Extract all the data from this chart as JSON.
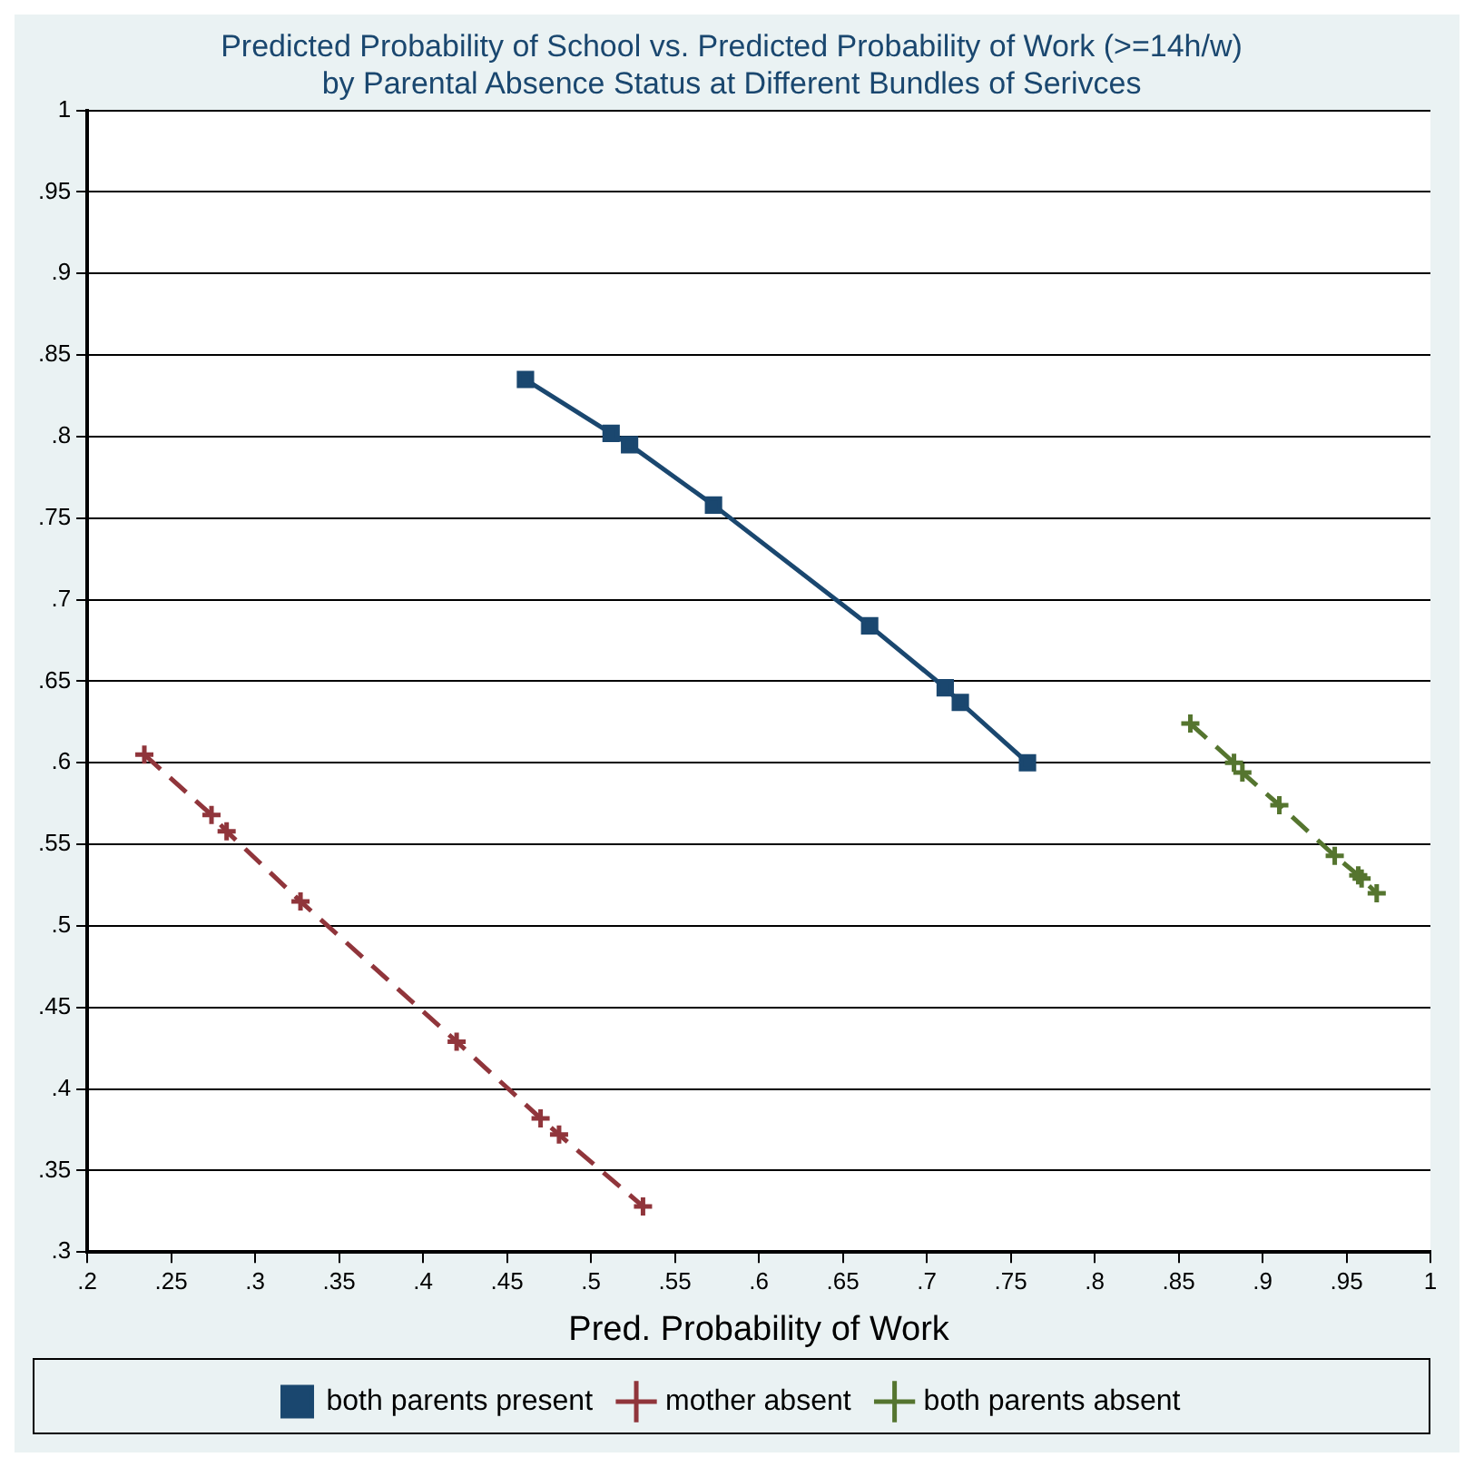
{
  "chart_data": {
    "type": "line",
    "title": "Predicted Probability of School vs. Predicted Probability of Work (>=14h/w)",
    "subtitle": "by Parental Absence Status at Different Bundles of Serivces",
    "xlabel": "Pred. Probability of Work",
    "xlim": [
      0.2,
      1
    ],
    "xticks": [
      {
        "value": 0.2,
        "label": ".2"
      },
      {
        "value": 0.25,
        "label": ".25"
      },
      {
        "value": 0.3,
        "label": ".3"
      },
      {
        "value": 0.35,
        "label": ".35"
      },
      {
        "value": 0.4,
        "label": ".4"
      },
      {
        "value": 0.45,
        "label": ".45"
      },
      {
        "value": 0.5,
        "label": ".5"
      },
      {
        "value": 0.55,
        "label": ".55"
      },
      {
        "value": 0.6,
        "label": ".6"
      },
      {
        "value": 0.65,
        "label": ".65"
      },
      {
        "value": 0.7,
        "label": ".7"
      },
      {
        "value": 0.75,
        "label": ".75"
      },
      {
        "value": 0.8,
        "label": ".8"
      },
      {
        "value": 0.85,
        "label": ".85"
      },
      {
        "value": 0.9,
        "label": ".9"
      },
      {
        "value": 0.95,
        "label": ".95"
      },
      1
    ],
    "ylim": [
      0.3,
      1
    ],
    "yticks": [
      {
        "value": 0.3,
        "label": ".3"
      },
      {
        "value": 0.35,
        "label": ".35"
      },
      {
        "value": 0.4,
        "label": ".4"
      },
      {
        "value": 0.45,
        "label": ".45"
      },
      {
        "value": 0.5,
        "label": ".5"
      },
      {
        "value": 0.55,
        "label": ".55"
      },
      {
        "value": 0.6,
        "label": ".6"
      },
      {
        "value": 0.65,
        "label": ".65"
      },
      {
        "value": 0.7,
        "label": ".7"
      },
      {
        "value": 0.75,
        "label": ".75"
      },
      {
        "value": 0.8,
        "label": ".8"
      },
      {
        "value": 0.85,
        "label": ".85"
      },
      {
        "value": 0.9,
        "label": ".9"
      },
      {
        "value": 0.95,
        "label": ".95"
      },
      1
    ],
    "grid": "y",
    "legend": "bottom",
    "series": [
      {
        "name": "both parents present",
        "color": "#1a476f",
        "marker": "square",
        "line_style": "solid",
        "x": [
          0.461,
          0.512,
          0.523,
          0.573,
          0.666,
          0.711,
          0.72,
          0.76
        ],
        "values": [
          0.835,
          0.802,
          0.795,
          0.758,
          0.684,
          0.646,
          0.637,
          0.6
        ]
      },
      {
        "name": "mother absent",
        "color": "#90353b",
        "marker": "cross",
        "line_style": "dashed",
        "x": [
          0.234,
          0.274,
          0.283,
          0.327,
          0.42,
          0.47,
          0.481,
          0.531
        ],
        "values": [
          0.605,
          0.568,
          0.558,
          0.515,
          0.429,
          0.382,
          0.372,
          0.328
        ]
      },
      {
        "name": "both parents absent",
        "color": "#55752f",
        "marker": "cross",
        "line_style": "dashed",
        "x": [
          0.857,
          0.883,
          0.888,
          0.91,
          0.943,
          0.957,
          0.959,
          0.968
        ],
        "values": [
          0.624,
          0.6,
          0.594,
          0.574,
          0.543,
          0.531,
          0.529,
          0.52
        ]
      }
    ]
  }
}
